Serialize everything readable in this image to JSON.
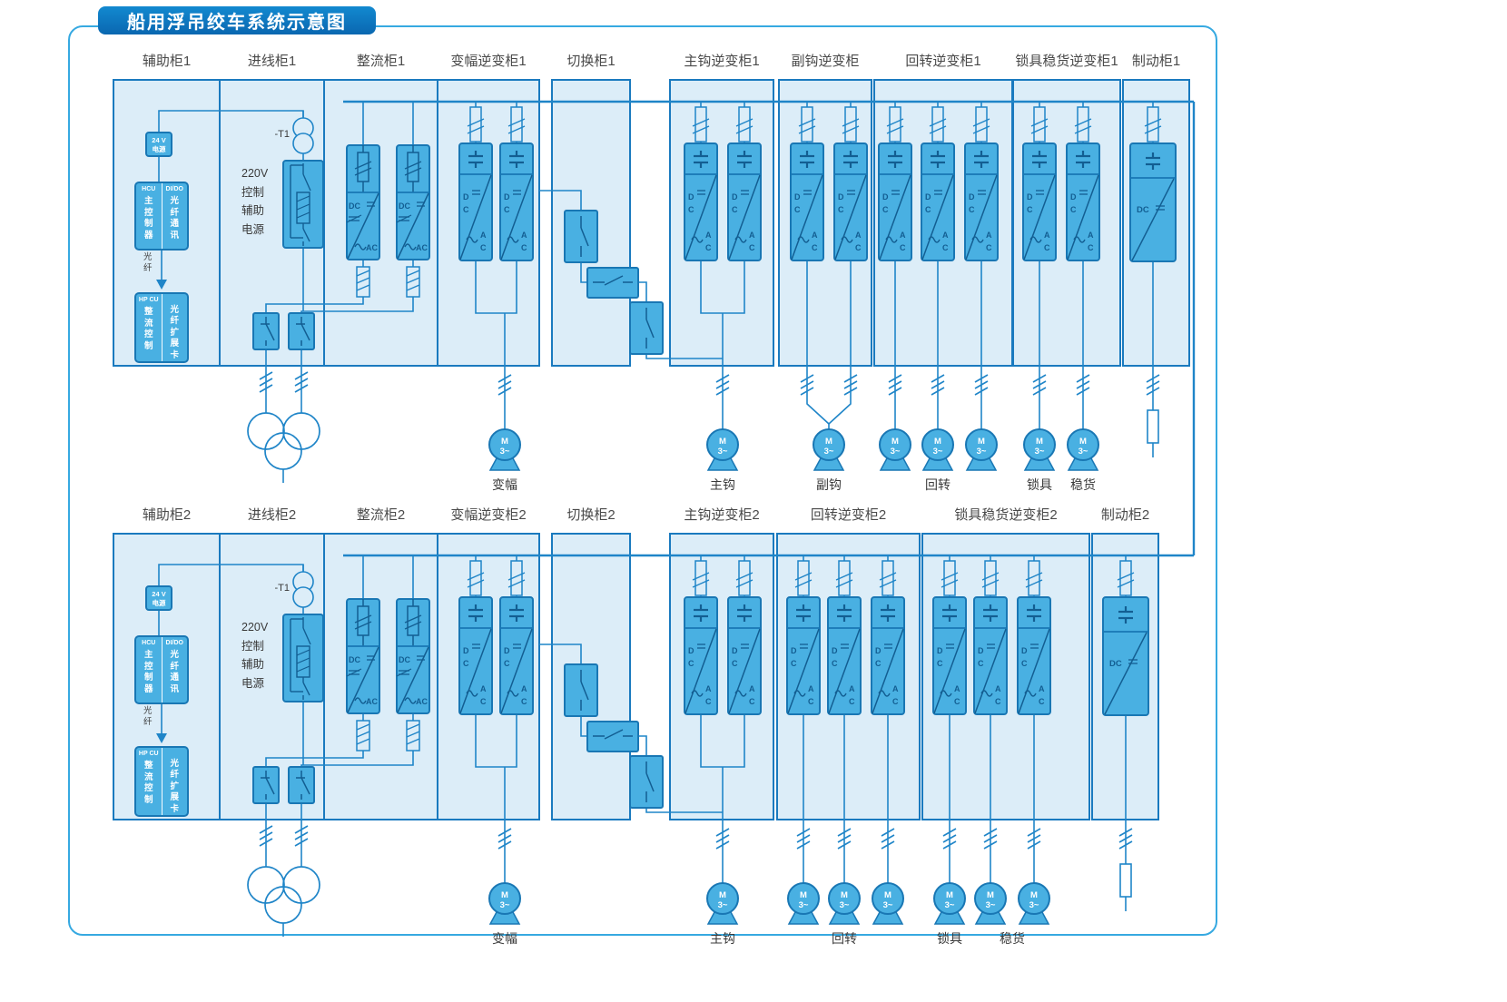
{
  "title": "船用浮吊绞车系统示意图",
  "rows": [
    {
      "cabinets": [
        "辅助柜1",
        "进线柜1",
        "整流柜1",
        "变幅逆变柜1",
        "切换柜1",
        "主钩逆变柜1",
        "副钩逆变柜",
        "回转逆变柜1",
        "锁具稳货逆变柜1",
        "制动柜1"
      ],
      "motor_labels": [
        "变幅",
        "主钩",
        "副钩",
        "回转",
        "锁具",
        "稳货"
      ]
    },
    {
      "cabinets": [
        "辅助柜2",
        "进线柜2",
        "整流柜2",
        "变幅逆变柜2",
        "切换柜2",
        "主钩逆变柜2",
        "回转逆变柜2",
        "锁具稳货逆变柜2",
        "制动柜2"
      ],
      "motor_labels": [
        "变幅",
        "主钩",
        "回转",
        "锁具",
        "稳货"
      ]
    }
  ],
  "aux_cabinet": {
    "psu": "24 V\n电源",
    "hcu_header": "HCU",
    "hcu_body": "主控制器",
    "dido_header": "DI/DO",
    "dido_body": "光纤通讯",
    "fiber": "光纤",
    "hpcu_header": "HP CU",
    "hpcu_body": "整流控制",
    "ext_header": "",
    "ext_body": "光纤扩展卡"
  },
  "incoming_cabinet": {
    "transformer": "-T1",
    "control_supply": "220V\n控制\n辅助\n电源"
  },
  "component_labels": {
    "inverter_d": "D",
    "inverter_c": "C",
    "inverter_a": "A",
    "rectifier_dc": "DC",
    "rectifier_ac": "AC",
    "brake_dc": "DC",
    "motor": "M",
    "motor_phase": "3~"
  },
  "colors": {
    "frame_border": "#36A9E1",
    "cabinet_fill": "#DCEDF8",
    "cabinet_border": "#1A7ABF",
    "component_fill": "#49B0E2",
    "component_border": "#1977B4",
    "wire": "#1F85C8",
    "inner_stroke": "#135E92",
    "title_bg_top": "#1289D0",
    "title_bg_bottom": "#0A67B0",
    "label_text": "#4a4a4a"
  }
}
